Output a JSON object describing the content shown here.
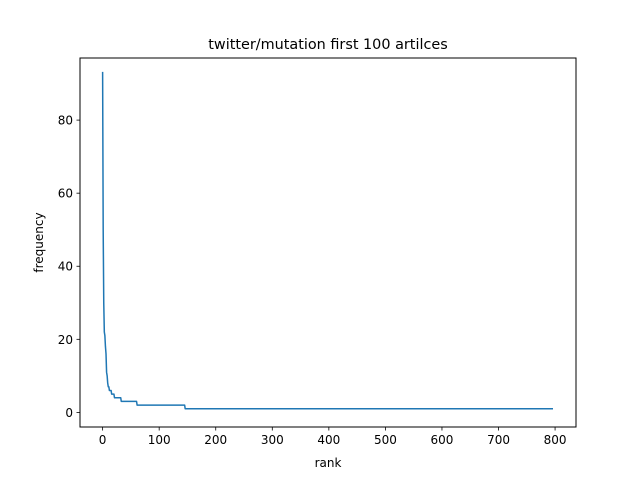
{
  "chart_data": {
    "type": "line",
    "title": "twitter/mutation first 100 artilces",
    "xlabel": "rank",
    "ylabel": "frequency",
    "xlim": [
      -40,
      837
    ],
    "ylim": [
      -4,
      97
    ],
    "xticks": [
      0,
      100,
      200,
      300,
      400,
      500,
      600,
      700,
      800
    ],
    "yticks": [
      0,
      20,
      40,
      60,
      80
    ],
    "grid": false,
    "legend": "none",
    "series": [
      {
        "color": "#1f77b4",
        "x": [
          0,
          1,
          2,
          3,
          4,
          5,
          6,
          7,
          8,
          9,
          10,
          11,
          12,
          15,
          16,
          20,
          21,
          25,
          26,
          32,
          33,
          60,
          61,
          145,
          146,
          795
        ],
        "y": [
          93,
          50,
          30,
          22,
          21,
          18,
          16,
          11,
          10,
          8,
          7,
          7,
          6,
          6,
          5,
          5,
          4,
          4,
          4,
          4,
          3,
          3,
          2,
          2,
          1,
          1
        ]
      }
    ]
  }
}
